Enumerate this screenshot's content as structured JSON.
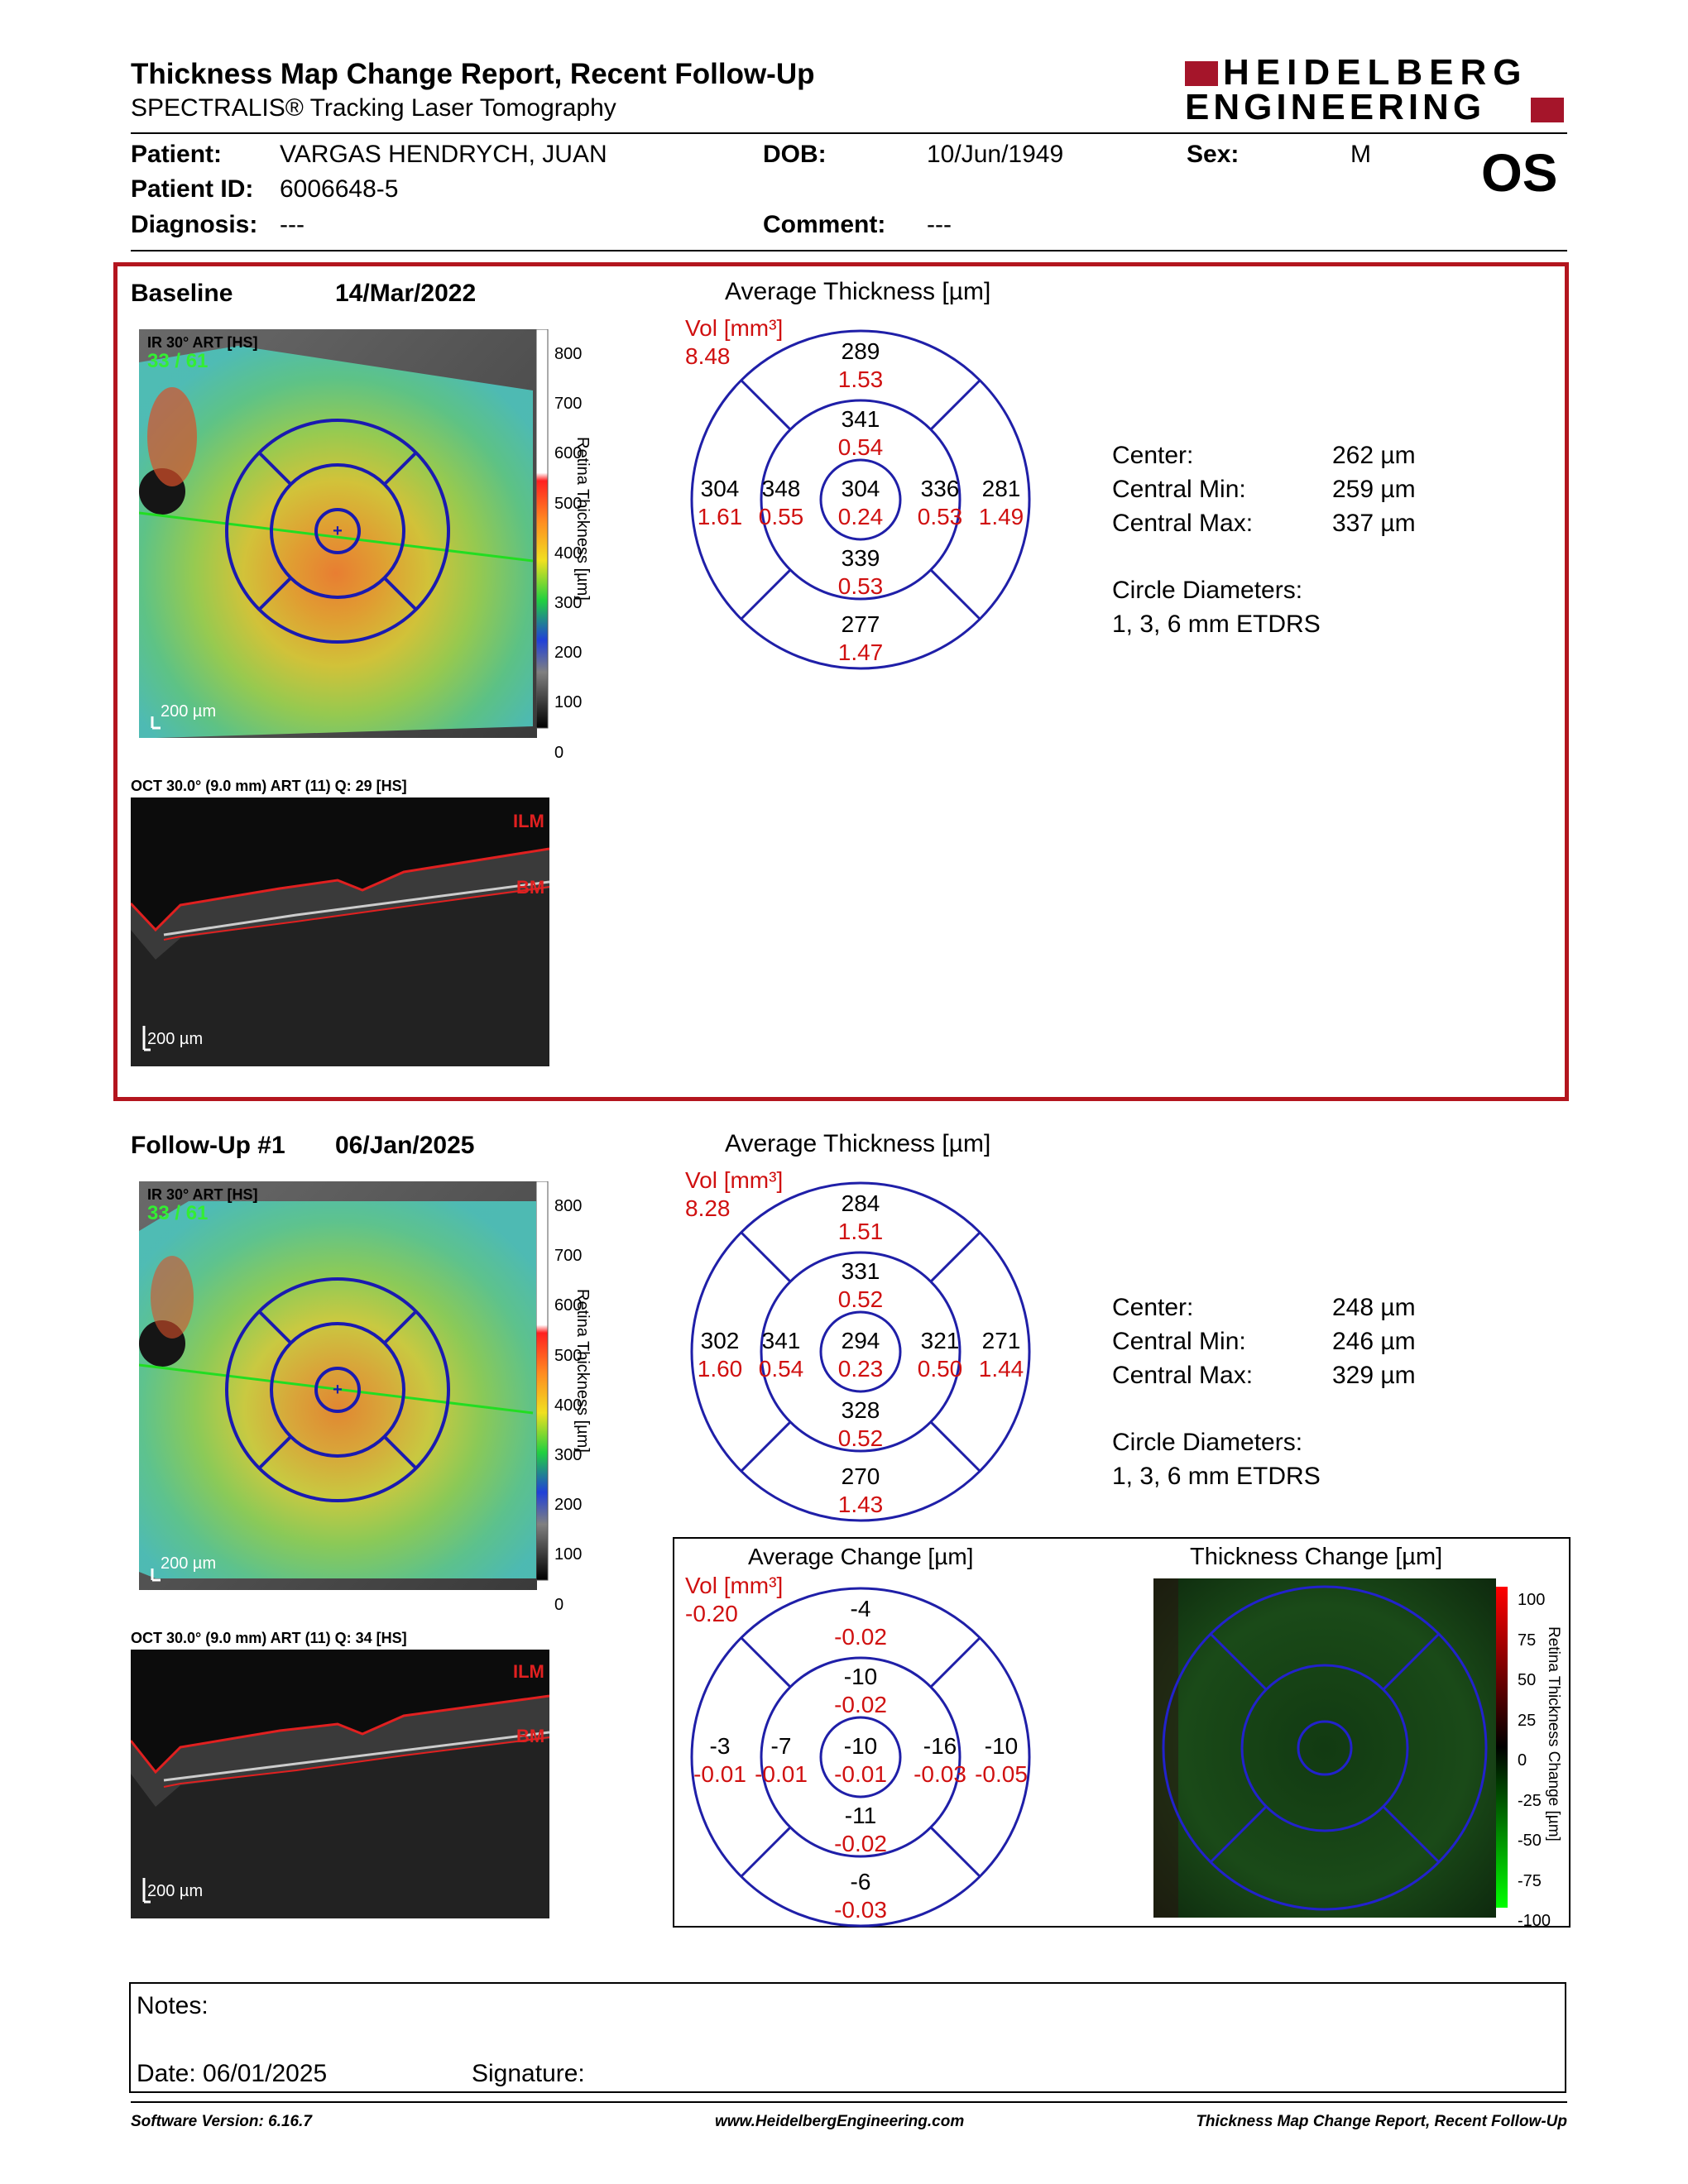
{
  "report": {
    "title": "Thickness Map Change Report, Recent Follow-Up",
    "subtitle": "SPECTRALIS® Tracking Laser Tomography",
    "brand_line1": "HEIDELBERG",
    "brand_line2": "ENGINEERING",
    "eye": "OS"
  },
  "patient": {
    "patient_label": "Patient:",
    "patient_name": "VARGAS HENDRYCH, JUAN",
    "dob_label": "DOB:",
    "dob": "10/Jun/1949",
    "sex_label": "Sex:",
    "sex": "M",
    "id_label": "Patient ID:",
    "id": "6006648-5",
    "diagnosis_label": "Diagnosis:",
    "diagnosis": "---",
    "comment_label": "Comment:",
    "comment": "---"
  },
  "baseline": {
    "label": "Baseline",
    "date": "14/Mar/2022",
    "ir_caption": "IR 30° ART [HS]",
    "ir_frames": "33 / 61",
    "scale": "200 µm",
    "oct_caption": "OCT 30.0° (9.0 mm) ART (11) Q: 29 [HS]",
    "ilm": "ILM",
    "bm": "BM",
    "colorbar_ticks": [
      "800",
      "700",
      "600",
      "500",
      "400",
      "300",
      "200",
      "100",
      "0"
    ],
    "colorbar_label": "Retina Thickness [µm]",
    "grid_title": "Average Thickness [µm]",
    "vol_label": "Vol [mm³]",
    "vol_total": "8.48",
    "sectors": {
      "center": {
        "t": "304",
        "v": "0.24"
      },
      "inner_sup": {
        "t": "341",
        "v": "0.54"
      },
      "inner_inf": {
        "t": "339",
        "v": "0.53"
      },
      "inner_left": {
        "t": "348",
        "v": "0.55"
      },
      "inner_right": {
        "t": "336",
        "v": "0.53"
      },
      "outer_sup": {
        "t": "289",
        "v": "1.53"
      },
      "outer_inf": {
        "t": "277",
        "v": "1.47"
      },
      "outer_left": {
        "t": "304",
        "v": "1.61"
      },
      "outer_right": {
        "t": "281",
        "v": "1.49"
      }
    },
    "stats": {
      "center_label": "Center:",
      "center": "262 µm",
      "min_label": "Central Min:",
      "min": "259 µm",
      "max_label": "Central Max:",
      "max": "337 µm",
      "diam_label": "Circle Diameters:",
      "diam": "1, 3, 6 mm ETDRS"
    }
  },
  "followup": {
    "label": "Follow-Up #1",
    "date": "06/Jan/2025",
    "ir_caption": "IR 30° ART [HS]",
    "ir_frames": "33 / 61",
    "scale": "200 µm",
    "oct_caption": "OCT 30.0° (9.0 mm) ART (11) Q: 34 [HS]",
    "ilm": "ILM",
    "bm": "BM",
    "colorbar_ticks": [
      "800",
      "700",
      "600",
      "500",
      "400",
      "300",
      "200",
      "100",
      "0"
    ],
    "colorbar_label": "Retina Thickness [µm]",
    "grid_title": "Average Thickness [µm]",
    "vol_label": "Vol [mm³]",
    "vol_total": "8.28",
    "sectors": {
      "center": {
        "t": "294",
        "v": "0.23"
      },
      "inner_sup": {
        "t": "331",
        "v": "0.52"
      },
      "inner_inf": {
        "t": "328",
        "v": "0.52"
      },
      "inner_left": {
        "t": "341",
        "v": "0.54"
      },
      "inner_right": {
        "t": "321",
        "v": "0.50"
      },
      "outer_sup": {
        "t": "284",
        "v": "1.51"
      },
      "outer_inf": {
        "t": "270",
        "v": "1.43"
      },
      "outer_left": {
        "t": "302",
        "v": "1.60"
      },
      "outer_right": {
        "t": "271",
        "v": "1.44"
      }
    },
    "stats": {
      "center_label": "Center:",
      "center": "248 µm",
      "min_label": "Central Min:",
      "min": "246 µm",
      "max_label": "Central Max:",
      "max": "329 µm",
      "diam_label": "Circle Diameters:",
      "diam": "1, 3, 6 mm ETDRS"
    }
  },
  "change": {
    "grid_title": "Average Change [µm]",
    "vol_label": "Vol [mm³]",
    "vol_total": "-0.20",
    "sectors": {
      "center": {
        "t": "-10",
        "v": "-0.01"
      },
      "inner_sup": {
        "t": "-10",
        "v": "-0.02"
      },
      "inner_inf": {
        "t": "-11",
        "v": "-0.02"
      },
      "inner_left": {
        "t": "-7",
        "v": "-0.01"
      },
      "inner_right": {
        "t": "-16",
        "v": "-0.03"
      },
      "outer_sup": {
        "t": "-4",
        "v": "-0.02"
      },
      "outer_inf": {
        "t": "-6",
        "v": "-0.03"
      },
      "outer_left": {
        "t": "-3",
        "v": "-0.01"
      },
      "outer_right": {
        "t": "-10",
        "v": "-0.05"
      }
    },
    "map_title": "Thickness Change [µm]",
    "map_ticks": [
      "100",
      "75",
      "50",
      "25",
      "0",
      "-25",
      "-50",
      "-75",
      "-100"
    ],
    "map_label": "Retina Thickness Change [µm]"
  },
  "notes": {
    "notes_label": "Notes:",
    "date_label": "Date: 06/01/2025",
    "signature_label": "Signature:"
  },
  "footer": {
    "software": "Software Version: 6.16.7",
    "website": "www.HeidelbergEngineering.com",
    "report_name": "Thickness Map Change Report, Recent Follow-Up"
  },
  "colors": {
    "accent_red": "#b3151e",
    "grid_blue": "#1f1fa8",
    "volume_red": "#d01010",
    "brand_red": "#a5152a"
  }
}
